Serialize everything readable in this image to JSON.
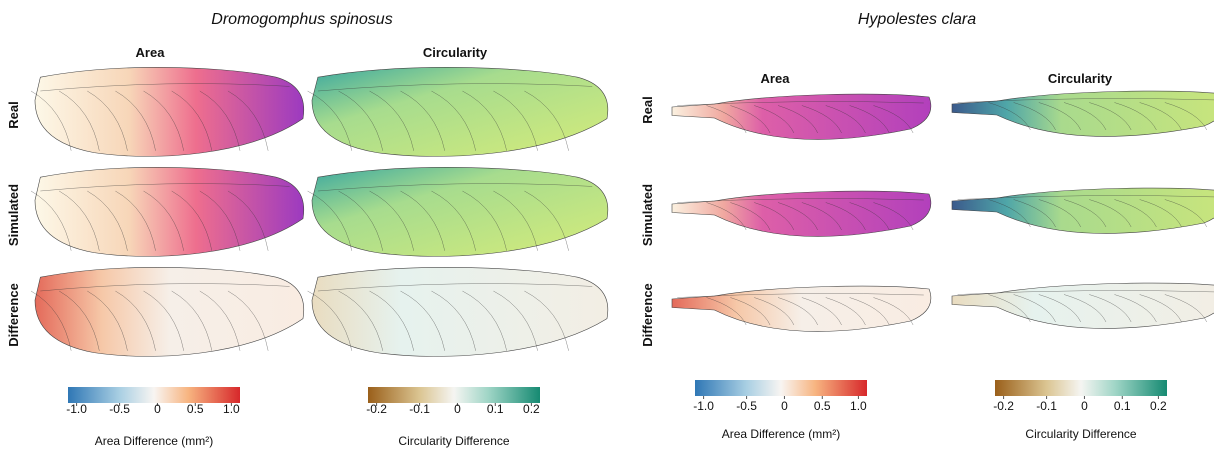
{
  "panels": [
    {
      "title": "Dromogomphus spinosus",
      "columns": [
        "Area",
        "Circularity"
      ],
      "rows": [
        "Real",
        "Simulated",
        "Difference"
      ],
      "colorbars": [
        {
          "ticks": [
            "-1.0",
            "-0.5",
            "0",
            "0.5",
            "1.0"
          ],
          "label": "Area Difference (mm²)"
        },
        {
          "ticks": [
            "-0.2",
            "-0.1",
            "0",
            "0.1",
            "0.2"
          ],
          "label": "Circularity Difference"
        }
      ]
    },
    {
      "title": "Hypolestes clara",
      "columns": [
        "Area",
        "Circularity"
      ],
      "rows": [
        "Real",
        "Simulated",
        "Difference"
      ],
      "colorbars": [
        {
          "ticks": [
            "-1.0",
            "-0.5",
            "0",
            "0.5",
            "1.0"
          ],
          "label": "Area Difference (mm²)"
        },
        {
          "ticks": [
            "-0.2",
            "-0.1",
            "0",
            "0.1",
            "0.2"
          ],
          "label": "Circularity Difference"
        }
      ]
    }
  ]
}
